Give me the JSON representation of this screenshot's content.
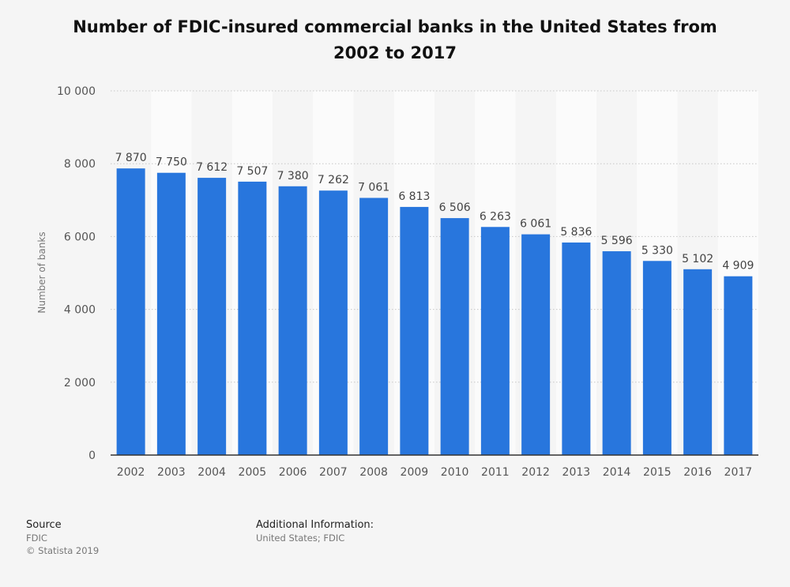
{
  "chart_data": {
    "type": "bar",
    "title": "Number of FDIC-insured commercial banks in the United States from 2002 to 2017",
    "xlabel": "",
    "ylabel": "Number of banks",
    "ylim": [
      0,
      10000
    ],
    "yticks": [
      0,
      2000,
      4000,
      6000,
      8000,
      10000
    ],
    "ytick_labels": [
      "0",
      "2 000",
      "4 000",
      "6 000",
      "8 000",
      "10 000"
    ],
    "categories": [
      "2002",
      "2003",
      "2004",
      "2005",
      "2006",
      "2007",
      "2008",
      "2009",
      "2010",
      "2011",
      "2012",
      "2013",
      "2014",
      "2015",
      "2016",
      "2017"
    ],
    "values": [
      7870,
      7750,
      7612,
      7507,
      7380,
      7262,
      7061,
      6813,
      6506,
      6263,
      6061,
      5836,
      5596,
      5330,
      5102,
      4909
    ],
    "value_labels": [
      "7 870",
      "7 750",
      "7 612",
      "7 507",
      "7 380",
      "7 262",
      "7 061",
      "6 813",
      "6 506",
      "6 263",
      "6 061",
      "5 836",
      "5 596",
      "5 330",
      "5 102",
      "4 909"
    ],
    "bar_color": "#2876dd",
    "grid": true,
    "legend": "none"
  },
  "footer": {
    "source_heading": "Source",
    "source_text": "FDIC",
    "copyright": "© Statista 2019",
    "info_heading": "Additional Information:",
    "info_text": "United States; FDIC"
  }
}
